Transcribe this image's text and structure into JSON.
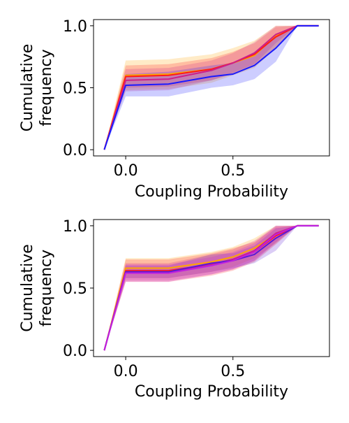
{
  "chart_data": [
    {
      "type": "line",
      "title": "",
      "xlabel": "Coupling Probability",
      "ylabel": [
        "Cumulative",
        "frequency"
      ],
      "xlim": [
        -0.15,
        0.95
      ],
      "ylim": [
        -0.05,
        1.05
      ],
      "xticks": [
        {
          "value": 0.0,
          "label": "0.0"
        },
        {
          "value": 0.5,
          "label": "0.5"
        }
      ],
      "yticks": [
        {
          "value": 0.0,
          "label": "0.0"
        },
        {
          "value": 0.5,
          "label": "0.5"
        },
        {
          "value": 1.0,
          "label": "1.0"
        }
      ],
      "grid": false,
      "x": [
        -0.1,
        0.0,
        0.2,
        0.4,
        0.5,
        0.6,
        0.7,
        0.8,
        0.9
      ],
      "series": [
        {
          "color": "#ffa500",
          "values": [
            0.0,
            0.6,
            0.61,
            0.65,
            0.7,
            0.76,
            0.92,
            1.0,
            1.0
          ],
          "lower": [
            0.0,
            0.48,
            0.49,
            0.54,
            0.6,
            0.66,
            0.82,
            1.0,
            1.0
          ],
          "upper": [
            0.0,
            0.72,
            0.73,
            0.77,
            0.82,
            0.88,
            1.0,
            1.0,
            1.0
          ]
        },
        {
          "color": "#ff1a1a",
          "values": [
            0.0,
            0.59,
            0.6,
            0.65,
            0.7,
            0.77,
            0.91,
            1.0,
            1.0
          ],
          "lower": [
            0.0,
            0.5,
            0.51,
            0.56,
            0.61,
            0.68,
            0.83,
            1.0,
            1.0
          ],
          "upper": [
            0.0,
            0.68,
            0.69,
            0.74,
            0.79,
            0.86,
            0.99,
            1.0,
            1.0
          ]
        },
        {
          "color": "#cc1f8a",
          "values": [
            0.0,
            0.56,
            0.57,
            0.64,
            0.7,
            0.78,
            0.93,
            1.0,
            1.0
          ],
          "lower": [
            0.0,
            0.47,
            0.48,
            0.56,
            0.62,
            0.69,
            0.86,
            1.0,
            1.0
          ],
          "upper": [
            0.0,
            0.65,
            0.66,
            0.72,
            0.78,
            0.87,
            1.0,
            1.0,
            1.0
          ]
        },
        {
          "color": "#1a1aff",
          "values": [
            0.0,
            0.52,
            0.53,
            0.59,
            0.61,
            0.68,
            0.82,
            1.0,
            1.0
          ],
          "lower": [
            0.0,
            0.43,
            0.43,
            0.5,
            0.52,
            0.57,
            0.71,
            1.0,
            1.0
          ],
          "upper": [
            0.0,
            0.61,
            0.63,
            0.68,
            0.7,
            0.79,
            0.93,
            1.0,
            1.0
          ]
        }
      ]
    },
    {
      "type": "line",
      "title": "",
      "xlabel": "Coupling Probability",
      "ylabel": [
        "Cumulative",
        "frequency"
      ],
      "xlim": [
        -0.15,
        0.95
      ],
      "ylim": [
        -0.05,
        1.05
      ],
      "xticks": [
        {
          "value": 0.0,
          "label": "0.0"
        },
        {
          "value": 0.5,
          "label": "0.5"
        }
      ],
      "yticks": [
        {
          "value": 0.0,
          "label": "0.0"
        },
        {
          "value": 0.5,
          "label": "0.5"
        },
        {
          "value": 1.0,
          "label": "1.0"
        }
      ],
      "grid": false,
      "x": [
        -0.1,
        0.0,
        0.2,
        0.4,
        0.5,
        0.6,
        0.7,
        0.8,
        0.9
      ],
      "series": [
        {
          "color": "#ffa500",
          "values": [
            0.0,
            0.66,
            0.66,
            0.71,
            0.75,
            0.82,
            0.93,
            1.0,
            1.0
          ],
          "lower": [
            0.0,
            0.58,
            0.58,
            0.63,
            0.67,
            0.74,
            0.86,
            1.0,
            1.0
          ],
          "upper": [
            0.0,
            0.74,
            0.74,
            0.79,
            0.83,
            0.9,
            1.0,
            1.0,
            1.0
          ]
        },
        {
          "color": "#ff1a1a",
          "values": [
            0.0,
            0.64,
            0.64,
            0.69,
            0.73,
            0.79,
            0.92,
            1.0,
            1.0
          ],
          "lower": [
            0.0,
            0.55,
            0.55,
            0.6,
            0.64,
            0.71,
            0.85,
            1.0,
            1.0
          ],
          "upper": [
            0.0,
            0.73,
            0.73,
            0.78,
            0.82,
            0.87,
            0.99,
            1.0,
            1.0
          ]
        },
        {
          "color": "#cc1f8a",
          "values": [
            0.0,
            0.63,
            0.63,
            0.69,
            0.73,
            0.8,
            0.94,
            1.0,
            1.0
          ],
          "lower": [
            0.0,
            0.56,
            0.56,
            0.61,
            0.65,
            0.72,
            0.87,
            1.0,
            1.0
          ],
          "upper": [
            0.0,
            0.7,
            0.7,
            0.77,
            0.81,
            0.88,
            1.0,
            1.0,
            1.0
          ]
        },
        {
          "color": "#5a1ad6",
          "values": [
            0.0,
            0.63,
            0.63,
            0.7,
            0.72,
            0.77,
            0.9,
            1.0,
            1.0
          ],
          "lower": [
            0.0,
            0.58,
            0.58,
            0.63,
            0.66,
            0.7,
            0.8,
            1.0,
            1.0
          ],
          "upper": [
            0.0,
            0.68,
            0.68,
            0.77,
            0.78,
            0.84,
            0.98,
            1.0,
            1.0
          ]
        },
        {
          "color": "#c020e0",
          "values": [
            0.0,
            0.62,
            0.62,
            0.68,
            0.72,
            0.79,
            0.93,
            1.0,
            1.0
          ],
          "lower": [
            0.0,
            0.55,
            0.55,
            0.61,
            0.65,
            0.72,
            0.86,
            1.0,
            1.0
          ],
          "upper": [
            0.0,
            0.69,
            0.69,
            0.75,
            0.79,
            0.86,
            1.0,
            1.0,
            1.0
          ]
        }
      ]
    }
  ]
}
